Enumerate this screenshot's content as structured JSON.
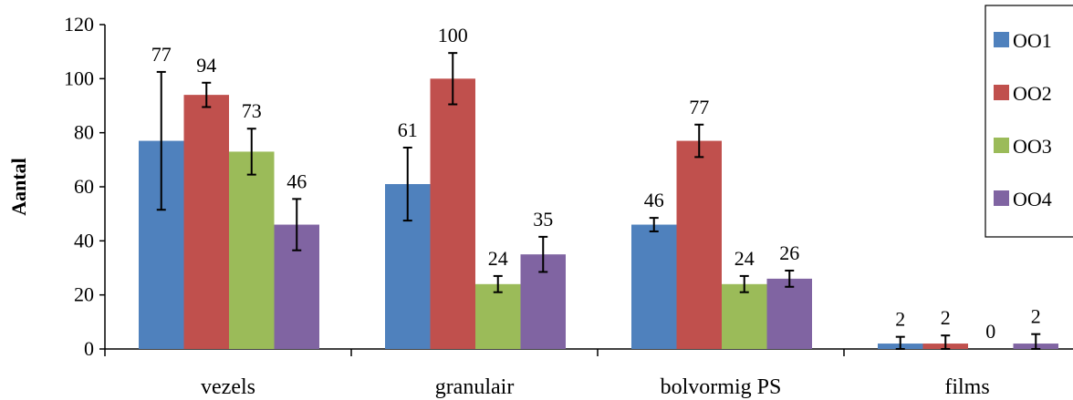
{
  "chart_data": {
    "type": "bar",
    "title": "",
    "xlabel": "",
    "ylabel": "Aantal",
    "ylim": [
      0,
      120
    ],
    "yticks": [
      0,
      20,
      40,
      60,
      80,
      100,
      120
    ],
    "categories": [
      "vezels",
      "granulair",
      "bolvormig PS",
      "films"
    ],
    "series": [
      {
        "name": "OO1",
        "color": "#4F81BD",
        "values": [
          77,
          61,
          46,
          2
        ],
        "labels": [
          "77",
          "61",
          "46",
          "2"
        ],
        "errors": [
          25.5,
          13.5,
          2.5,
          2.5
        ]
      },
      {
        "name": "OO2",
        "color": "#C0504D",
        "values": [
          94,
          100,
          77,
          2
        ],
        "labels": [
          "94",
          "100",
          "77",
          "2"
        ],
        "errors": [
          4.5,
          9.5,
          6,
          3
        ]
      },
      {
        "name": "OO3",
        "color": "#9BBB59",
        "values": [
          73,
          24,
          24,
          0
        ],
        "labels": [
          "73",
          "24",
          "24",
          "0"
        ],
        "errors": [
          8.5,
          3,
          3,
          0
        ]
      },
      {
        "name": "OO4",
        "color": "#8064A2",
        "values": [
          46,
          35,
          26,
          2
        ],
        "labels": [
          "46",
          "35",
          "26",
          "2"
        ],
        "errors": [
          9.5,
          6.5,
          3,
          3.5
        ]
      }
    ],
    "grid": false,
    "legend": "top-right"
  }
}
